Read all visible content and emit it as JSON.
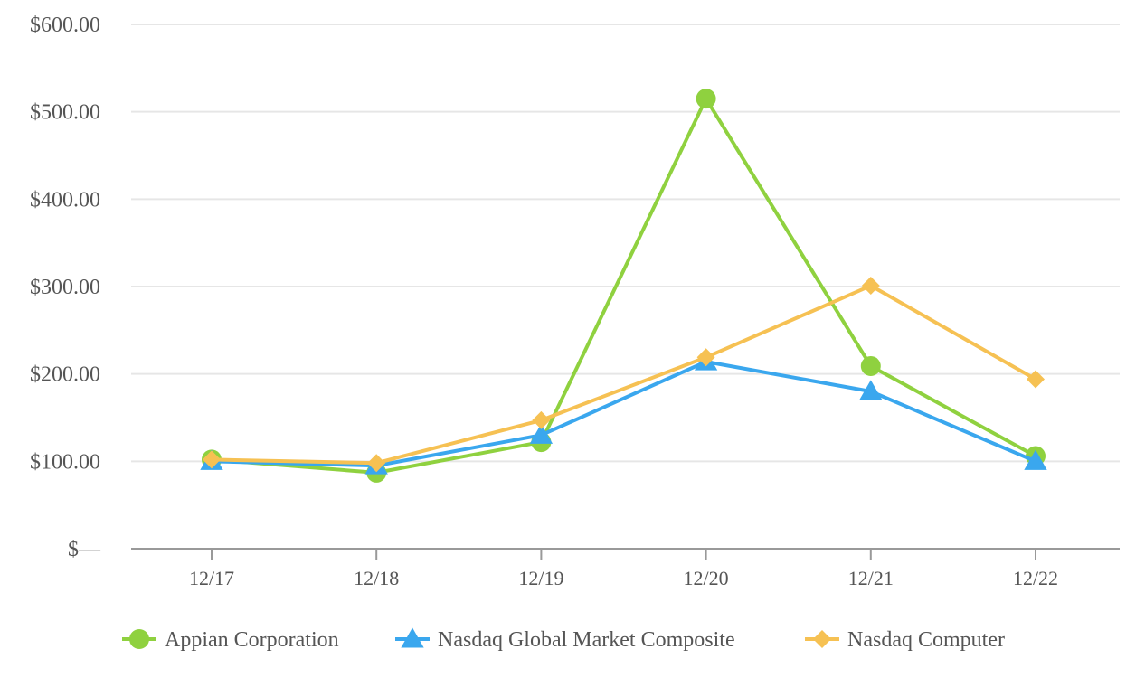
{
  "chart_data": {
    "type": "line",
    "categories": [
      "12/17",
      "12/18",
      "12/19",
      "12/20",
      "12/21",
      "12/22"
    ],
    "y_tick_labels": [
      "$—",
      "$100.00",
      "$200.00",
      "$300.00",
      "$400.00",
      "$500.00",
      "$600.00"
    ],
    "y_tick_values": [
      0,
      100,
      200,
      300,
      400,
      500,
      600
    ],
    "ylim": [
      0,
      600
    ],
    "grid": true,
    "legend_position": "bottom",
    "series": [
      {
        "name": "Appian Corporation",
        "color": "#8fd13f",
        "marker": "circle",
        "values": [
          102,
          87,
          122,
          515,
          209,
          106
        ]
      },
      {
        "name": "Nasdaq Global Market Composite",
        "color": "#3aa7ee",
        "marker": "triangle",
        "values": [
          100,
          95,
          130,
          214,
          180,
          100
        ]
      },
      {
        "name": "Nasdaq Computer",
        "color": "#f6c153",
        "marker": "diamond",
        "values": [
          102,
          98,
          147,
          219,
          301,
          194
        ]
      }
    ]
  }
}
